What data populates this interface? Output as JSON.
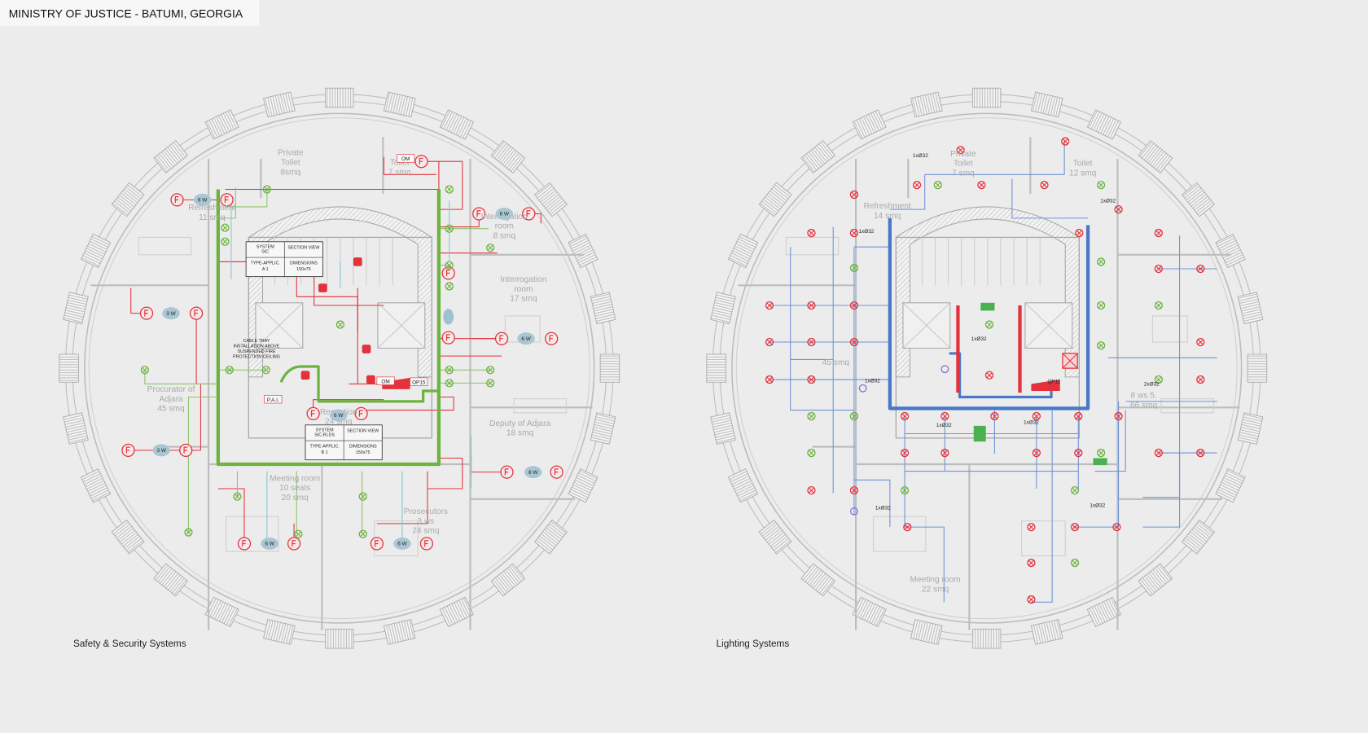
{
  "header": {
    "title": "MINISTRY OF JUSTICE - BATUMI, GEORGIA"
  },
  "plans": [
    {
      "caption": "Safety & Security Systems",
      "rooms": [
        [
          "Private",
          "Toilet",
          "8smq"
        ],
        [
          "Toilet",
          "7 smq"
        ],
        [
          "Refreshment",
          "11 smq"
        ],
        [
          "Interrogation",
          "room",
          "8 smq"
        ],
        [
          "Interrogation",
          "room",
          "17 smq"
        ],
        [
          "Procurator of",
          "Adjara",
          "45 smq"
        ],
        [
          "Reception",
          "24 smq"
        ],
        [
          "Deputy of Adjara",
          "18 smq"
        ],
        [
          "Meeting room",
          "10 seats",
          "20 smq"
        ],
        [
          "Prosecutors",
          "3 ws",
          "24 smq"
        ]
      ],
      "badges": [
        "6 W",
        "3 W",
        "3 W",
        "6 W",
        "6 W",
        "6 W",
        "6 W",
        "6 W",
        "6 W"
      ],
      "tags": [
        "OM",
        "OM",
        "OP15",
        "P.A.I."
      ],
      "tables": [
        {
          "system": [
            "SYSTEM",
            "SIC"
          ],
          "section": "SECTION VIEW",
          "type": [
            "TYPE-APPLIC.",
            "A     1"
          ],
          "dimensions": [
            "DIMENSIONS",
            "150x75"
          ]
        },
        {
          "system": [
            "SYSTEM",
            "SIC,RI,DS"
          ],
          "section": "SECTION VIEW",
          "type": [
            "TYPE-APPLIC.",
            "B     1"
          ],
          "dimensions": [
            "DIMENSIONS",
            "150x75"
          ]
        }
      ],
      "note": [
        "CABLE TRAY",
        "INSTALLATION ABOVE",
        "SUSPENDED FIRE",
        "PROTECTION CEILING"
      ]
    },
    {
      "caption": "Lighting Systems",
      "rooms": [
        [
          "Private",
          "Toilet",
          "7 smq"
        ],
        [
          "Toilet",
          "12 smq"
        ],
        [
          "Refreshment",
          "14 smq"
        ],
        [
          "45 smq"
        ],
        [
          "8 ws 5.",
          "66 smq"
        ],
        [
          "Meeting room",
          "22 smq"
        ]
      ],
      "tags": [
        "1xØ32",
        "1xØ32",
        "1xØ32",
        "1xØ32",
        "1xØ32",
        "1xØ32",
        "1xØ32",
        "2xØ32",
        "1xØ32",
        "1xØ32",
        "QP11"
      ]
    }
  ]
}
